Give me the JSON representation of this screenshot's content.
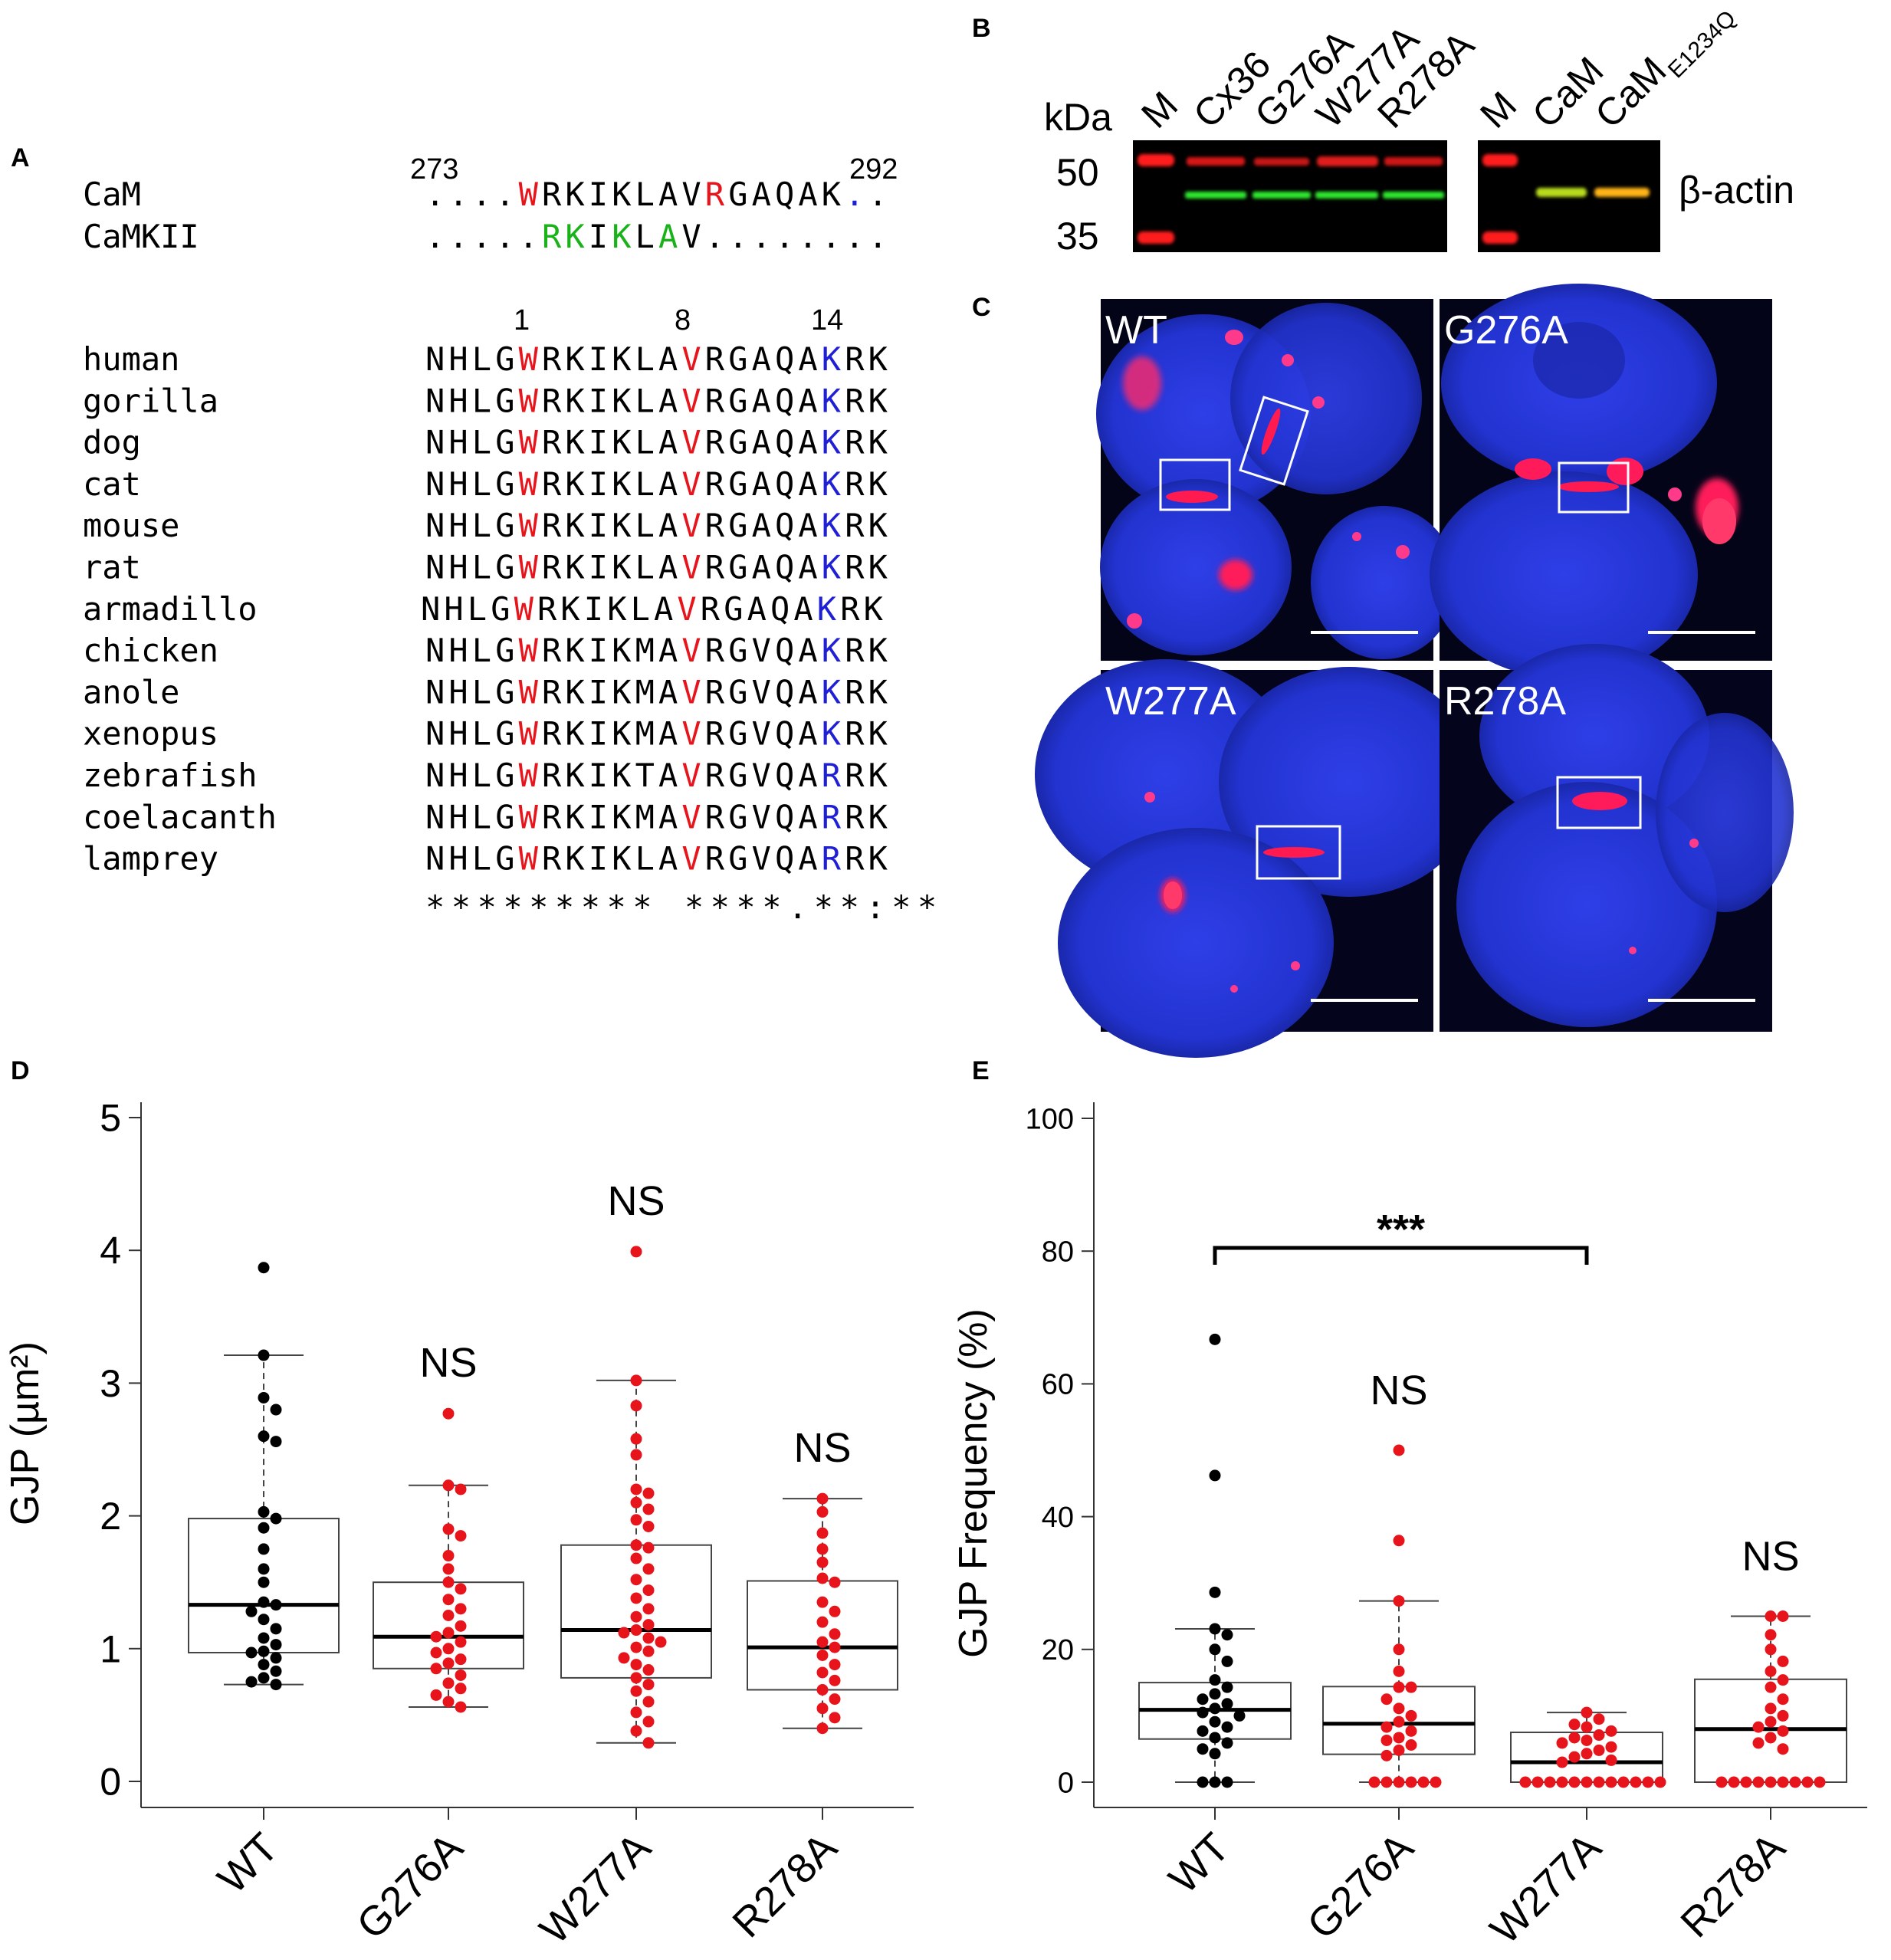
{
  "panels": {
    "A": {
      "label": "A",
      "top_rows": [
        {
          "name": "CaM",
          "seq": "....WRKIKLAVRGAQAK..",
          "colors": "....r.......r.....b.."
        },
        {
          "name": "CaMKII",
          "seq": ".....RKIKLAV........",
          "colors": ".....gg.g.g........."
        }
      ],
      "pos_left": "273",
      "pos_right": "292",
      "index_labels": [
        "1",
        "8",
        "14"
      ],
      "species": [
        {
          "name": "human",
          "seq": "NHLGWRKIKLAVRGAQAKRK"
        },
        {
          "name": "gorilla",
          "seq": "NHLGWRKIKLAVRGAQAKRK"
        },
        {
          "name": "dog",
          "seq": "NHLGWRKIKLAVRGAQAKRK"
        },
        {
          "name": "cat",
          "seq": "NHLGWRKIKLAVRGAQAKRK"
        },
        {
          "name": "mouse",
          "seq": "NHLGWRKIKLAVRGAQAKRK"
        },
        {
          "name": "rat",
          "seq": "NHLGWRKIKLAVRGAQAKRK"
        },
        {
          "name": "armadillo",
          "seq": "NHLGWRKIKLAVRGAQAKRK"
        },
        {
          "name": "chicken",
          "seq": "NHLGWRKIKMAVRGVQAKRK"
        },
        {
          "name": "anole",
          "seq": "NHLGWRKIKMAVRGVQAKRK"
        },
        {
          "name": "xenopus",
          "seq": "NHLGWRKIKMAVRGVQAKRK"
        },
        {
          "name": "zebrafish",
          "seq": "NHLGWRKIKTAVRGVQARRK"
        },
        {
          "name": "coelacanth",
          "seq": "NHLGWRKIKMAVRGVQARRK"
        },
        {
          "name": "lamprey",
          "seq": "NHLGWRKIKLAVRGVQARRK"
        }
      ],
      "consensus": "********* ****.**:**",
      "colors": {
        "red": "#e8141b",
        "blue": "#1f1fd6",
        "green": "#19b219"
      }
    },
    "B": {
      "label": "B",
      "unit": "kDa",
      "lanes_left": [
        "M",
        "Cx36",
        "G276A",
        "W277A",
        "R278A"
      ],
      "lanes_right": [
        "M",
        "CaM",
        "CaM",
        "E1234Q"
      ],
      "markers": [
        "50",
        "35"
      ],
      "band_label": "β-actin"
    },
    "C": {
      "label": "C",
      "images": [
        "WT",
        "G276A",
        "W277A",
        "R278A"
      ]
    },
    "D": {
      "label": "D",
      "ylabel": "GJP (µm²)",
      "significance": [
        "NS",
        "NS",
        "NS"
      ]
    },
    "E": {
      "label": "E",
      "ylabel": "GJP Frequency (%)",
      "significance": [
        "***",
        "NS",
        "NS"
      ]
    }
  },
  "chart_data": [
    {
      "type": "box",
      "panel": "D",
      "ylabel": "GJP (µm²)",
      "ylim": [
        0,
        5
      ],
      "yticks": [
        "0",
        "1",
        "2",
        "3",
        "4",
        "5"
      ],
      "categories": [
        "WT",
        "G276A",
        "W277A",
        "R278A"
      ],
      "boxes": [
        {
          "q1": 0.97,
          "median": 1.33,
          "q3": 1.98,
          "whisker_low": 0.73,
          "whisker_high": 3.21
        },
        {
          "q1": 0.85,
          "median": 1.09,
          "q3": 1.5,
          "whisker_low": 0.56,
          "whisker_high": 2.23
        },
        {
          "q1": 0.78,
          "median": 1.14,
          "q3": 1.78,
          "whisker_low": 0.29,
          "whisker_high": 3.02
        },
        {
          "q1": 0.69,
          "median": 1.01,
          "q3": 1.51,
          "whisker_low": 0.4,
          "whisker_high": 2.13
        }
      ],
      "points": [
        [
          3.87,
          3.21,
          2.89,
          2.8,
          2.6,
          2.56,
          2.03,
          1.98,
          1.91,
          1.75,
          1.6,
          1.5,
          1.35,
          1.33,
          1.28,
          1.22,
          1.15,
          1.08,
          1.03,
          0.98,
          0.97,
          0.93,
          0.88,
          0.83,
          0.78,
          0.75,
          0.73
        ],
        [
          2.77,
          2.23,
          2.2,
          1.9,
          1.85,
          1.7,
          1.6,
          1.5,
          1.45,
          1.37,
          1.3,
          1.25,
          1.17,
          1.12,
          1.09,
          1.05,
          1.0,
          0.97,
          0.92,
          0.89,
          0.85,
          0.8,
          0.74,
          0.7,
          0.65,
          0.6,
          0.56
        ],
        [
          3.99,
          3.02,
          2.83,
          2.58,
          2.46,
          2.2,
          2.17,
          2.1,
          2.05,
          1.97,
          1.92,
          1.78,
          1.76,
          1.68,
          1.6,
          1.52,
          1.44,
          1.38,
          1.3,
          1.24,
          1.18,
          1.14,
          1.12,
          1.08,
          1.05,
          1.01,
          0.98,
          0.93,
          0.88,
          0.84,
          0.78,
          0.73,
          0.68,
          0.6,
          0.52,
          0.45,
          0.38,
          0.29
        ],
        [
          2.13,
          2.03,
          1.87,
          1.75,
          1.65,
          1.53,
          1.5,
          1.35,
          1.28,
          1.2,
          1.11,
          1.05,
          1.01,
          0.95,
          0.88,
          0.82,
          0.76,
          0.69,
          0.62,
          0.55,
          0.48,
          0.4
        ]
      ],
      "significance": [
        "",
        "NS",
        "NS",
        "NS"
      ]
    },
    {
      "type": "box",
      "panel": "E",
      "ylabel": "GJP Frequency (%)",
      "ylim": [
        0,
        100
      ],
      "yticks": [
        "0",
        "20",
        "40",
        "60",
        "80",
        "100"
      ],
      "categories": [
        "WT",
        "G276A",
        "W277A",
        "R278A"
      ],
      "boxes": [
        {
          "q1": 6.5,
          "median": 10.9,
          "q3": 15.0,
          "whisker_low": 0,
          "whisker_high": 23.1
        },
        {
          "q1": 4.2,
          "median": 8.8,
          "q3": 14.4,
          "whisker_low": 0,
          "whisker_high": 27.3
        },
        {
          "q1": 0,
          "median": 3.0,
          "q3": 7.5,
          "whisker_low": 0,
          "whisker_high": 10.5
        },
        {
          "q1": 0,
          "median": 8.0,
          "q3": 15.5,
          "whisker_low": 0,
          "whisker_high": 25.0
        }
      ],
      "points": [
        [
          66.7,
          46.2,
          28.6,
          23.1,
          22.2,
          20.0,
          18.2,
          15.4,
          14.3,
          13.3,
          12.5,
          11.8,
          11.1,
          10.5,
          10.0,
          9.1,
          8.3,
          7.7,
          6.7,
          5.9,
          5.0,
          4.3,
          0,
          0,
          0
        ],
        [
          50.0,
          36.4,
          27.3,
          20.0,
          16.7,
          14.3,
          14.3,
          12.5,
          11.1,
          10.0,
          9.1,
          8.3,
          7.7,
          6.7,
          6.3,
          5.6,
          4.8,
          4.0,
          0,
          0,
          0,
          0,
          0,
          0
        ],
        [
          10.5,
          9.5,
          8.7,
          8.3,
          7.7,
          7.1,
          6.7,
          6.3,
          5.9,
          5.3,
          4.8,
          4.3,
          3.8,
          3.3,
          3.0,
          0,
          0,
          0,
          0,
          0,
          0,
          0,
          0,
          0,
          0,
          0,
          0
        ],
        [
          25.0,
          25.0,
          22.2,
          20.0,
          18.2,
          16.7,
          15.4,
          14.3,
          12.5,
          11.1,
          10.0,
          9.1,
          8.3,
          7.7,
          6.7,
          5.9,
          5.0,
          0,
          0,
          0,
          0,
          0,
          0,
          0,
          0,
          0
        ]
      ],
      "significance": [
        "",
        "NS",
        "",
        "NS"
      ],
      "bracket": {
        "from": "WT",
        "to": "W277A",
        "label": "***"
      }
    }
  ]
}
